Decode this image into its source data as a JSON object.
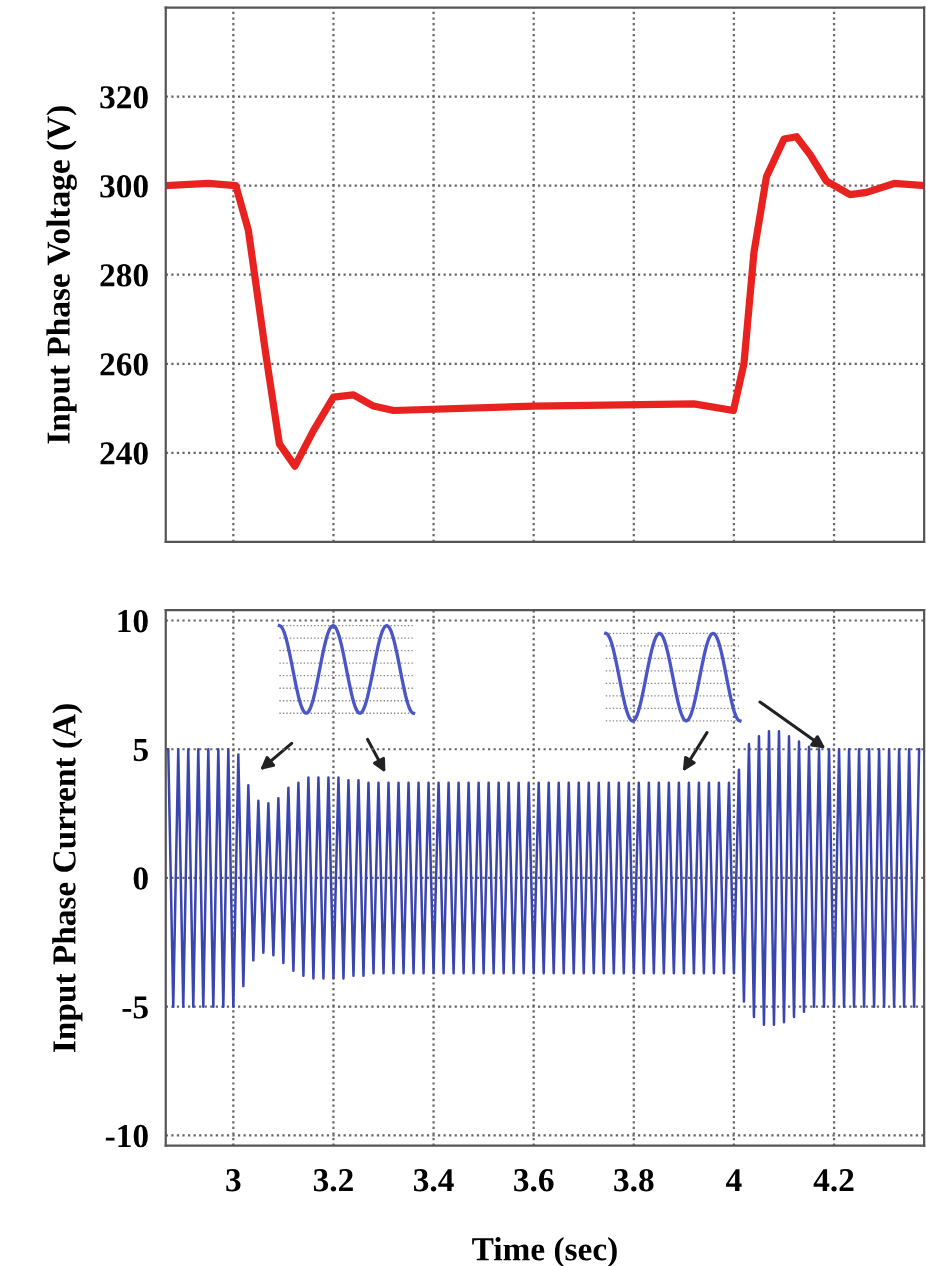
{
  "chart_data": [
    {
      "type": "line",
      "ylabel": "Input Phase Voltage (V)",
      "xlim": [
        2.865,
        4.38
      ],
      "xticks": [
        3,
        3.2,
        3.4,
        3.6,
        3.8,
        4,
        4.2
      ],
      "ylim": [
        220,
        340
      ],
      "yticks": [
        240,
        260,
        280,
        300,
        320
      ],
      "grid": true,
      "tick_labels": "y",
      "marker": "none",
      "line_style": "solid",
      "series": [
        {
          "color": "#e8231f",
          "x": [
            2.865,
            2.95,
            3.005,
            3.03,
            3.065,
            3.092,
            3.123,
            3.16,
            3.2,
            3.24,
            3.28,
            3.32,
            3.6,
            3.92,
            3.999,
            4.02,
            4.04,
            4.065,
            4.1,
            4.125,
            4.152,
            4.185,
            4.232,
            4.265,
            4.32,
            4.38
          ],
          "values": [
            300,
            300.5,
            300,
            290,
            262,
            242,
            237,
            245,
            252.5,
            253,
            250.5,
            249.5,
            250.5,
            251,
            249.5,
            260,
            285,
            302,
            310.5,
            311,
            307,
            301,
            298,
            298.5,
            300.5,
            300
          ]
        }
      ]
    },
    {
      "type": "line",
      "xlabel": "Time (sec)",
      "ylabel": "Input Phase Current (A)",
      "xlim": [
        2.865,
        4.38
      ],
      "xticks": [
        3,
        3.2,
        3.4,
        3.6,
        3.8,
        4,
        4.2
      ],
      "ylim": [
        -10.4,
        10.4
      ],
      "yticks": [
        -10,
        -5,
        0,
        5,
        10
      ],
      "grid": true,
      "marker": "none",
      "line_style": "solid",
      "series": [
        {
          "color": "#3a45b0",
          "x": [
            2.87,
            2.88,
            2.89,
            2.9,
            2.91,
            2.92,
            2.93,
            2.94,
            2.95,
            2.96,
            2.97,
            2.98,
            2.99,
            3.0,
            3.01,
            3.02,
            3.03,
            3.04,
            3.05,
            3.06,
            3.07,
            3.08,
            3.09,
            3.1,
            3.11,
            3.12,
            3.13,
            3.14,
            3.15,
            3.16,
            3.17,
            3.18,
            3.19,
            3.2,
            3.21,
            3.22,
            3.23,
            3.24,
            3.25,
            3.26,
            3.27,
            3.28,
            3.29,
            3.3,
            3.31,
            3.32,
            3.33,
            3.34,
            3.35,
            3.36,
            3.37,
            3.38,
            3.39,
            3.4,
            3.41,
            3.42,
            3.43,
            3.44,
            3.45,
            3.46,
            3.47,
            3.48,
            3.49,
            3.5,
            3.51,
            3.52,
            3.53,
            3.54,
            3.55,
            3.56,
            3.57,
            3.58,
            3.59,
            3.6,
            3.61,
            3.62,
            3.63,
            3.64,
            3.65,
            3.66,
            3.67,
            3.68,
            3.69,
            3.7,
            3.71,
            3.72,
            3.73,
            3.74,
            3.75,
            3.76,
            3.77,
            3.78,
            3.79,
            3.8,
            3.81,
            3.82,
            3.83,
            3.84,
            3.85,
            3.86,
            3.87,
            3.88,
            3.89,
            3.9,
            3.91,
            3.92,
            3.93,
            3.94,
            3.95,
            3.96,
            3.97,
            3.98,
            3.99,
            4.0,
            4.01,
            4.02,
            4.03,
            4.04,
            4.05,
            4.06,
            4.07,
            4.08,
            4.09,
            4.1,
            4.11,
            4.12,
            4.13,
            4.14,
            4.15,
            4.16,
            4.17,
            4.18,
            4.19,
            4.2,
            4.21,
            4.22,
            4.23,
            4.24,
            4.25,
            4.26,
            4.27,
            4.28,
            4.29,
            4.3,
            4.31,
            4.32,
            4.33,
            4.34,
            4.35,
            4.36,
            4.37
          ],
          "values": [
            5,
            -5,
            5,
            -5,
            5,
            -5,
            5,
            -5,
            5,
            -5,
            5,
            -5,
            5,
            -5,
            4.8,
            -4.2,
            3.6,
            -3.2,
            3.0,
            -2.9,
            2.9,
            -3.0,
            3.1,
            -3.3,
            3.5,
            -3.6,
            3.7,
            -3.8,
            3.9,
            -3.9,
            3.9,
            -3.9,
            3.9,
            -3.9,
            3.9,
            -3.9,
            3.8,
            -3.8,
            3.8,
            -3.8,
            3.7,
            -3.7,
            3.7,
            -3.7,
            3.7,
            -3.7,
            3.7,
            -3.7,
            3.7,
            -3.7,
            3.7,
            -3.7,
            3.7,
            -3.7,
            3.7,
            -3.7,
            3.7,
            -3.7,
            3.7,
            -3.7,
            3.7,
            -3.7,
            3.7,
            -3.7,
            3.7,
            -3.7,
            3.7,
            -3.7,
            3.7,
            -3.7,
            3.7,
            -3.7,
            3.7,
            -3.7,
            3.7,
            -3.7,
            3.7,
            -3.7,
            3.7,
            -3.7,
            3.7,
            -3.7,
            3.7,
            -3.7,
            3.7,
            -3.7,
            3.7,
            -3.7,
            3.7,
            -3.7,
            3.7,
            -3.7,
            3.7,
            -3.7,
            3.7,
            -3.7,
            3.7,
            -3.7,
            3.7,
            -3.7,
            3.7,
            -3.7,
            3.7,
            -3.7,
            3.7,
            -3.7,
            3.7,
            -3.7,
            3.7,
            -3.7,
            3.7,
            -3.7,
            3.7,
            -3.7,
            4.2,
            -4.8,
            5.2,
            -5.4,
            5.5,
            -5.7,
            5.7,
            -5.7,
            5.7,
            -5.6,
            5.5,
            -5.4,
            5.3,
            -5.2,
            5.1,
            -5,
            5,
            -5,
            5,
            -5,
            5,
            -5,
            5,
            -5,
            5,
            -5,
            5,
            -5,
            5,
            -5,
            5,
            -5,
            5,
            -5,
            5,
            -5,
            5
          ]
        }
      ]
    }
  ]
}
